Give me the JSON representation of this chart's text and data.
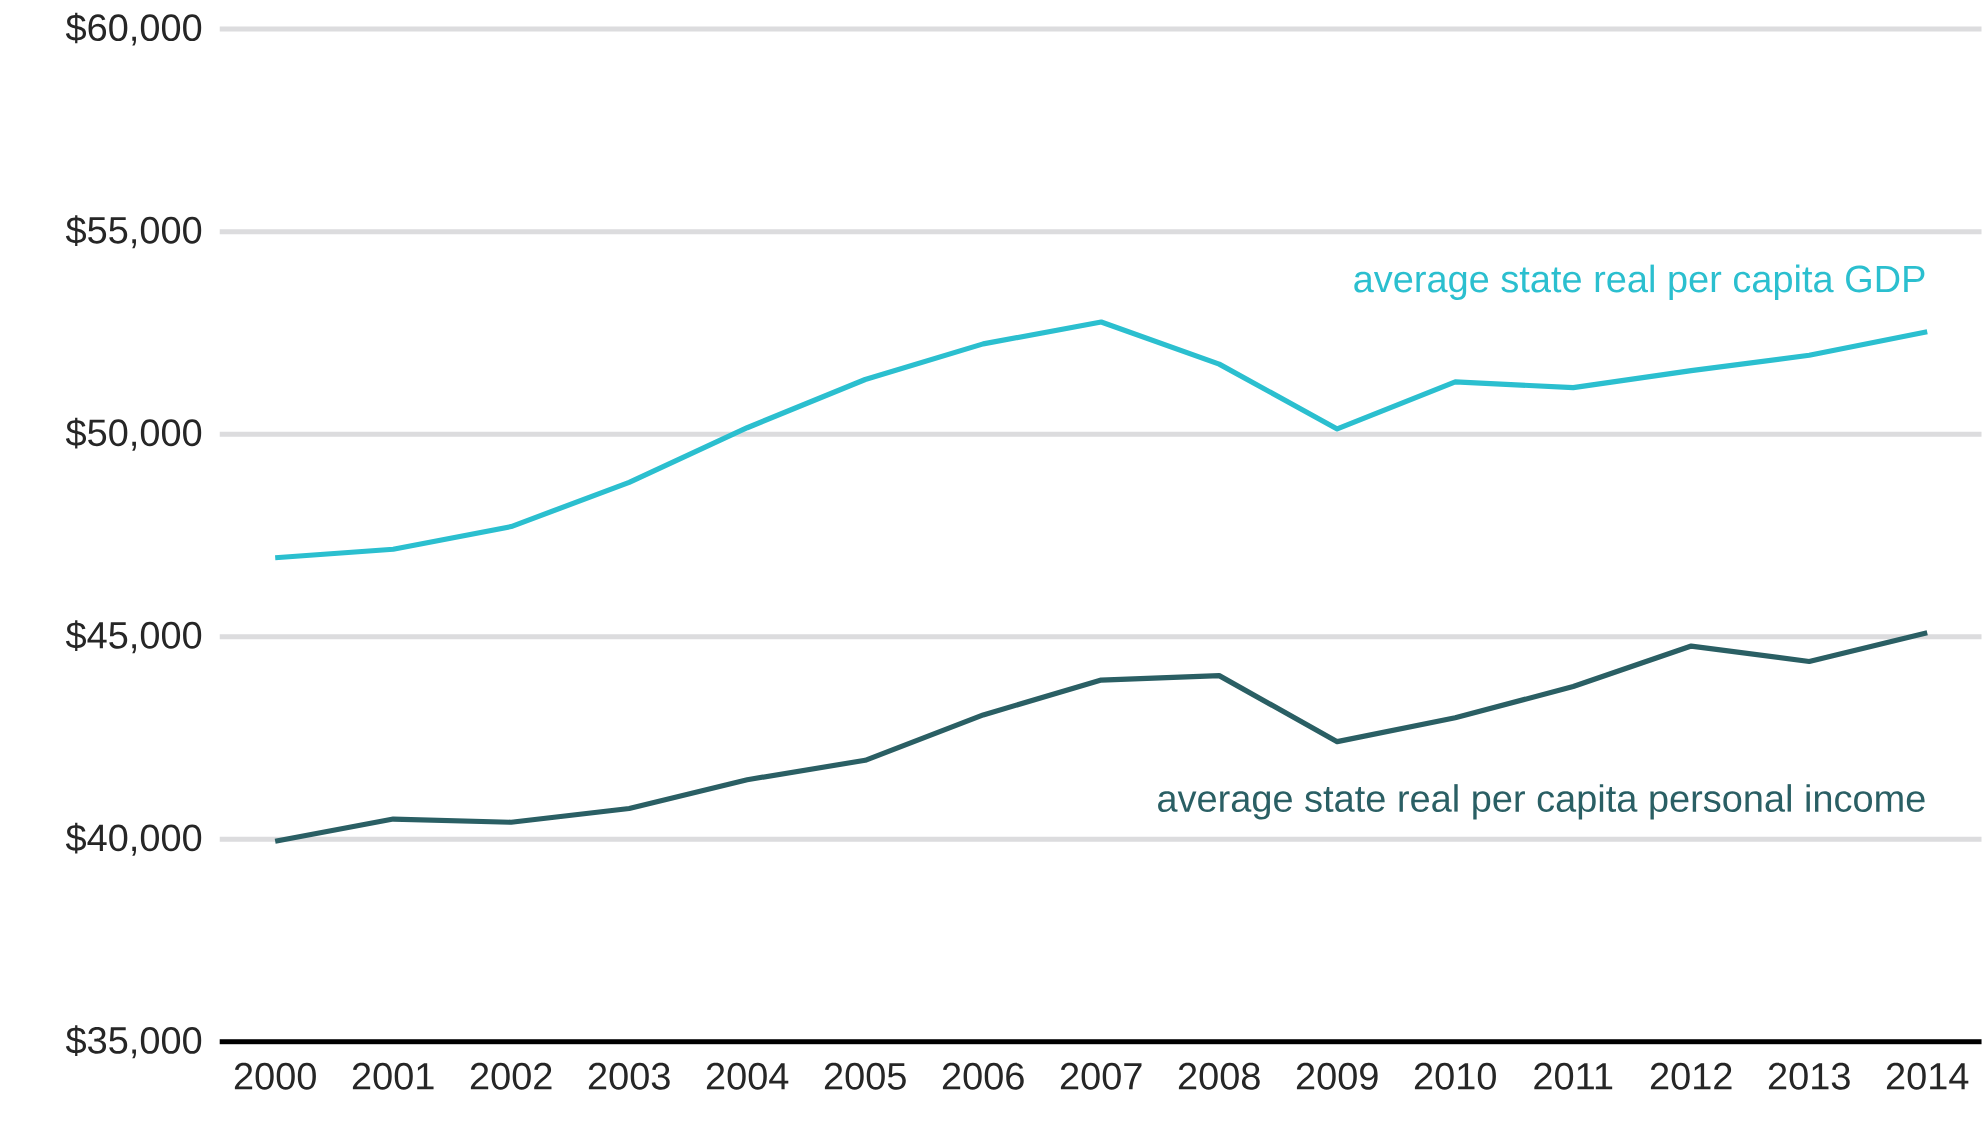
{
  "chart_data": {
    "type": "line",
    "categories": [
      "2000",
      "2001",
      "2002",
      "2003",
      "2004",
      "2005",
      "2006",
      "2007",
      "2008",
      "2009",
      "2010",
      "2011",
      "2012",
      "2013",
      "2014"
    ],
    "series": [
      {
        "name": "average state real per capita GDP",
        "color": "#2bbfcf",
        "values": [
          46950,
          47160,
          47720,
          48810,
          50160,
          51350,
          52230,
          52770,
          51730,
          50130,
          51290,
          51150,
          51570,
          51950,
          52530
        ]
      },
      {
        "name": "average state real per capita personal income",
        "color": "#2a5f64",
        "values": [
          39950,
          40500,
          40420,
          40760,
          41470,
          41950,
          43070,
          43930,
          44040,
          42410,
          43000,
          43770,
          44770,
          44390,
          45100
        ]
      }
    ],
    "ylim": [
      35000,
      60000
    ],
    "yticks": [
      {
        "value": 35000,
        "label": "$35,000"
      },
      {
        "value": 40000,
        "label": "$40,000"
      },
      {
        "value": 45000,
        "label": "$45,000"
      },
      {
        "value": 50000,
        "label": "$50,000"
      },
      {
        "value": 55000,
        "label": "$55,000"
      },
      {
        "value": 60000,
        "label": "$60,000"
      }
    ],
    "grid": "y",
    "legend": false,
    "marker": "none",
    "line_style": "solid"
  }
}
